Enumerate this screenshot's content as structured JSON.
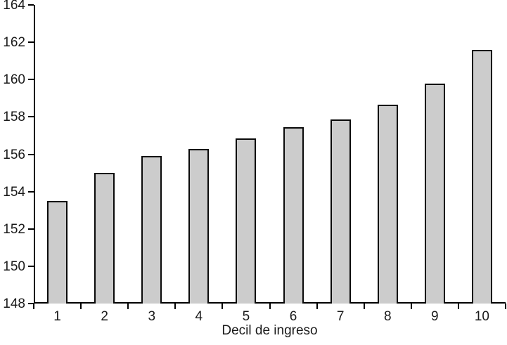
{
  "chart_data": {
    "type": "bar",
    "title": "",
    "xlabel": "Decil de ingreso",
    "ylabel": "",
    "categories": [
      "1",
      "2",
      "3",
      "4",
      "5",
      "6",
      "7",
      "8",
      "9",
      "10"
    ],
    "values": [
      153.5,
      155.0,
      155.9,
      156.3,
      156.85,
      157.45,
      157.85,
      158.65,
      159.8,
      161.6
    ],
    "ylim": [
      148,
      164
    ],
    "yticks": [
      148,
      150,
      152,
      154,
      156,
      158,
      160,
      162,
      164
    ],
    "grid": false,
    "legend_position": "none",
    "colors": {
      "bar_fill": "#cccccc",
      "bar_border": "#0a0a0a",
      "axis": "#000000",
      "text": "#1a1a1a",
      "background": "#ffffff"
    }
  }
}
